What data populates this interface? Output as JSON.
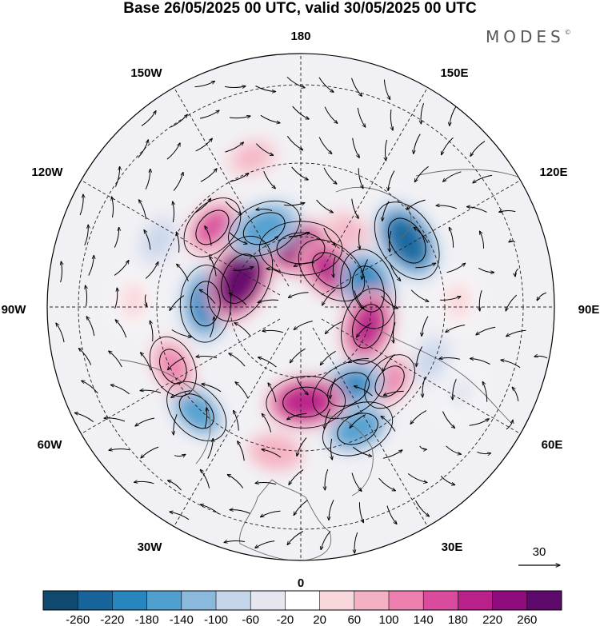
{
  "title": "Base 26/05/2025 00 UTC, valid 30/05/2025 00 UTC",
  "brand": {
    "name": "MODES",
    "mark": "©"
  },
  "map": {
    "projection": "polar stereographic, north pole",
    "longitude_labels": [
      "180",
      "150E",
      "120E",
      "90E",
      "60E",
      "30E",
      "0",
      "30W",
      "60W",
      "90W",
      "120W",
      "150W"
    ],
    "wind_reference": {
      "value": "30"
    }
  },
  "colorbar": {
    "tick_labels": [
      "-260",
      "-220",
      "-180",
      "-140",
      "-100",
      "-60",
      "-20",
      "20",
      "60",
      "100",
      "140",
      "180",
      "220",
      "260"
    ],
    "colors": [
      "#0f4a6e",
      "#17649a",
      "#2886bf",
      "#4f9fcf",
      "#8bb9dc",
      "#c4d5ea",
      "#e6e6f1",
      "#ffffff",
      "#f8d8dd",
      "#f4b1c3",
      "#ec7fae",
      "#d94b9c",
      "#b8208a",
      "#8e0c7c",
      "#5e0a6c"
    ]
  },
  "anomalies": [
    {
      "lon": 180,
      "lat": 68,
      "value": 220
    },
    {
      "lon": 148,
      "lat": 57,
      "value": 60
    },
    {
      "lon": 122,
      "lat": 45,
      "value": -230
    },
    {
      "lon": 140,
      "lat": 72,
      "value": 180
    },
    {
      "lon": 105,
      "lat": 64,
      "value": -210
    },
    {
      "lon": 74,
      "lat": 64,
      "value": 190
    },
    {
      "lon": 50,
      "lat": 48,
      "value": 100
    },
    {
      "lon": 68,
      "lat": 40,
      "value": -80
    },
    {
      "lon": 30,
      "lat": 55,
      "value": -190
    },
    {
      "lon": 25,
      "lat": 42,
      "value": -170
    },
    {
      "lon": 3,
      "lat": 55,
      "value": 200
    },
    {
      "lon": 350,
      "lat": 38,
      "value": 90
    },
    {
      "lon": 315,
      "lat": 38,
      "value": -150
    },
    {
      "lon": 295,
      "lat": 40,
      "value": 110
    },
    {
      "lon": 268,
      "lat": 55,
      "value": -190
    },
    {
      "lon": 245,
      "lat": 65,
      "value": 260
    },
    {
      "lon": 228,
      "lat": 47,
      "value": 140
    },
    {
      "lon": 205,
      "lat": 58,
      "value": -180
    },
    {
      "lon": 245,
      "lat": 35,
      "value": -80
    },
    {
      "lon": 198,
      "lat": 35,
      "value": 60
    },
    {
      "lon": 92,
      "lat": 35,
      "value": 40
    },
    {
      "lon": 62,
      "lat": 28,
      "value": -40
    },
    {
      "lon": 268,
      "lat": 32,
      "value": 40
    }
  ]
}
